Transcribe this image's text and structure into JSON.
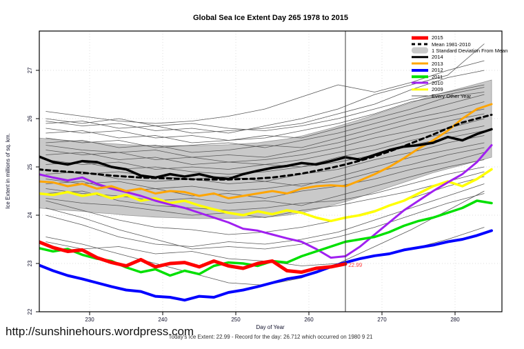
{
  "footer": {
    "summary": "Today's Ice Extent: 22.99  - Record for the day: 26.712 which occurred on 1980 9 21",
    "url": "http://sunshinehours.wordpress.com"
  },
  "chart_data": {
    "type": "line",
    "title": "Global Sea Ice Extent Day 265 1978 to 2015",
    "xlabel": "Day of Year",
    "ylabel": "Ice Extent in millions of sq. km.",
    "xlim": [
      223,
      286
    ],
    "ylim": [
      21.9,
      27.8
    ],
    "grid": true,
    "legend_position": "top-right",
    "x_ticks": [
      230,
      240,
      250,
      260,
      270,
      280
    ],
    "y_ticks": [
      22,
      23,
      24,
      25,
      26,
      27
    ],
    "vline_day": 265,
    "annotation": {
      "text": "22.99",
      "day": 265.4,
      "value": 22.97
    },
    "style": {
      "band_fill": "#c9c9c9",
      "band_edge": "#979797",
      "grid_color": "#dcdcdc",
      "other_year_color": "#565656",
      "vline_color": "#3a3a3a",
      "annotation_color": "#ff4040"
    },
    "days": [
      223,
      225,
      227,
      229,
      231,
      233,
      235,
      237,
      239,
      241,
      243,
      245,
      247,
      249,
      251,
      253,
      255,
      257,
      259,
      261,
      263,
      265,
      267,
      269,
      271,
      273,
      275,
      277,
      279,
      281,
      283,
      285
    ],
    "days_2015": [
      223,
      225,
      227,
      229,
      231,
      233,
      235,
      237,
      239,
      241,
      243,
      245,
      247,
      249,
      251,
      253,
      255,
      257,
      259,
      261,
      263,
      265
    ],
    "other_days": [
      224,
      229,
      234,
      239,
      244,
      249,
      254,
      259,
      264,
      269,
      274,
      279,
      284
    ],
    "band": {
      "label": "1 Standard Deviation From Mean",
      "upper": [
        25.6,
        25.57,
        25.55,
        25.53,
        25.5,
        25.48,
        25.46,
        25.45,
        25.44,
        25.44,
        25.44,
        25.44,
        25.45,
        25.46,
        25.48,
        25.5,
        25.54,
        25.58,
        25.64,
        25.72,
        25.8,
        25.89,
        25.98,
        26.08,
        26.18,
        26.28,
        26.38,
        26.48,
        26.56,
        26.64,
        26.72,
        26.8
      ],
      "lower": [
        24.15,
        24.12,
        24.1,
        24.08,
        24.05,
        24.03,
        24.0,
        23.98,
        23.96,
        23.95,
        23.94,
        23.93,
        23.93,
        23.93,
        23.94,
        23.95,
        23.97,
        24.0,
        24.05,
        24.12,
        24.2,
        24.28,
        24.38,
        24.48,
        24.58,
        24.68,
        24.78,
        24.88,
        24.96,
        25.04,
        25.12,
        25.2
      ]
    },
    "series": [
      {
        "name": "2009",
        "color": "#ffff00",
        "width": 3.5,
        "days_ref": "days",
        "values": [
          24.45,
          24.42,
          24.48,
          24.4,
          24.45,
          24.35,
          24.42,
          24.3,
          24.35,
          24.25,
          24.3,
          24.2,
          24.12,
          24.05,
          24.0,
          24.08,
          24.02,
          24.1,
          24.05,
          23.95,
          23.88,
          23.95,
          24.0,
          24.08,
          24.2,
          24.3,
          24.45,
          24.6,
          24.7,
          24.6,
          24.75,
          24.95
        ]
      },
      {
        "name": "2010",
        "color": "#a020f0",
        "width": 3,
        "days_ref": "days",
        "values": [
          24.85,
          24.78,
          24.72,
          24.78,
          24.65,
          24.55,
          24.48,
          24.4,
          24.3,
          24.22,
          24.15,
          24.05,
          23.95,
          23.85,
          23.72,
          23.68,
          23.6,
          23.52,
          23.45,
          23.3,
          23.12,
          23.15,
          23.35,
          23.6,
          23.85,
          24.1,
          24.3,
          24.5,
          24.68,
          24.85,
          25.1,
          25.45
        ]
      },
      {
        "name": "2011",
        "color": "#00e000",
        "width": 3.5,
        "days_ref": "days",
        "values": [
          23.32,
          23.25,
          23.3,
          23.18,
          23.1,
          23.05,
          22.92,
          22.82,
          22.88,
          22.75,
          22.85,
          22.78,
          22.95,
          23.02,
          23.0,
          22.95,
          23.05,
          23.02,
          23.15,
          23.25,
          23.35,
          23.45,
          23.5,
          23.55,
          23.65,
          23.78,
          23.88,
          23.95,
          24.05,
          24.15,
          24.3,
          24.25
        ]
      },
      {
        "name": "2012",
        "color": "#0000ff",
        "width": 4,
        "days_ref": "days",
        "values": [
          22.97,
          22.85,
          22.75,
          22.68,
          22.6,
          22.52,
          22.45,
          22.42,
          22.32,
          22.3,
          22.24,
          22.32,
          22.3,
          22.4,
          22.45,
          22.52,
          22.6,
          22.68,
          22.73,
          22.82,
          22.93,
          23.02,
          23.1,
          23.16,
          23.2,
          23.28,
          23.33,
          23.38,
          23.45,
          23.5,
          23.58,
          23.68
        ]
      },
      {
        "name": "2013",
        "color": "#ffa500",
        "width": 3,
        "days_ref": "days",
        "values": [
          24.7,
          24.68,
          24.6,
          24.65,
          24.55,
          24.6,
          24.5,
          24.55,
          24.45,
          24.5,
          24.48,
          24.4,
          24.45,
          24.35,
          24.4,
          24.45,
          24.5,
          24.45,
          24.55,
          24.6,
          24.62,
          24.6,
          24.72,
          24.85,
          25.0,
          25.18,
          25.38,
          25.55,
          25.75,
          26.0,
          26.2,
          26.3
        ]
      },
      {
        "name": "2014",
        "color": "#000000",
        "width": 3.5,
        "days_ref": "days",
        "values": [
          25.22,
          25.1,
          25.05,
          25.12,
          25.1,
          25.0,
          24.95,
          24.82,
          24.78,
          24.85,
          24.8,
          24.85,
          24.78,
          24.75,
          24.85,
          24.92,
          24.98,
          25.02,
          25.08,
          25.05,
          25.12,
          25.2,
          25.15,
          25.25,
          25.35,
          25.42,
          25.45,
          25.5,
          25.62,
          25.55,
          25.68,
          25.78
        ]
      },
      {
        "name": "mean-1981-2010",
        "color": "#000000",
        "width": 3,
        "dash": "6 5",
        "days_ref": "days",
        "values": [
          24.95,
          24.92,
          24.9,
          24.88,
          24.85,
          24.82,
          24.8,
          24.78,
          24.77,
          24.76,
          24.75,
          24.74,
          24.74,
          24.74,
          24.75,
          24.76,
          24.78,
          24.82,
          24.86,
          24.92,
          24.98,
          25.05,
          25.13,
          25.22,
          25.32,
          25.43,
          25.55,
          25.67,
          25.8,
          25.92,
          26.0,
          26.08
        ]
      },
      {
        "name": "2015",
        "color": "#ff0000",
        "width": 5,
        "days_ref": "days_2015",
        "values": [
          23.45,
          23.33,
          23.25,
          23.28,
          23.12,
          23.02,
          22.95,
          23.08,
          22.93,
          23.0,
          23.02,
          22.93,
          23.05,
          22.95,
          22.9,
          23.0,
          23.05,
          22.85,
          22.82,
          22.9,
          22.93,
          22.99
        ]
      }
    ],
    "other_years": [
      [
        26.15,
        26.05,
        25.95,
        25.9,
        25.95,
        26.05,
        26.2,
        26.45,
        26.7,
        26.55,
        26.75,
        27.0,
        27.2
      ],
      [
        25.95,
        25.85,
        25.9,
        25.75,
        25.8,
        25.7,
        25.85,
        26.0,
        26.2,
        26.5,
        26.7,
        26.9,
        27.55
      ],
      [
        25.9,
        25.95,
        25.8,
        25.85,
        25.7,
        25.75,
        25.8,
        25.9,
        26.1,
        26.3,
        26.6,
        26.85,
        27.0
      ],
      [
        26.0,
        25.9,
        26.0,
        25.85,
        25.9,
        25.8,
        25.75,
        25.85,
        26.0,
        26.2,
        26.4,
        26.55,
        26.7
      ],
      [
        25.8,
        25.7,
        25.75,
        25.6,
        25.65,
        25.55,
        25.6,
        25.75,
        25.9,
        26.1,
        26.35,
        26.5,
        26.65
      ],
      [
        25.7,
        25.75,
        25.6,
        25.65,
        25.5,
        25.55,
        25.65,
        25.6,
        25.8,
        26.0,
        26.2,
        26.45,
        26.55
      ],
      [
        25.6,
        25.5,
        25.55,
        25.4,
        25.45,
        25.5,
        25.4,
        25.55,
        25.7,
        25.9,
        26.1,
        26.3,
        26.5
      ],
      [
        25.5,
        25.55,
        25.4,
        25.45,
        25.3,
        25.35,
        25.45,
        25.4,
        25.6,
        25.8,
        26.0,
        26.15,
        26.35
      ],
      [
        25.45,
        25.35,
        25.3,
        25.35,
        25.2,
        25.25,
        25.2,
        25.35,
        25.5,
        25.7,
        25.9,
        26.05,
        26.2
      ],
      [
        25.35,
        25.25,
        25.3,
        25.15,
        25.2,
        25.1,
        25.15,
        25.25,
        25.4,
        25.6,
        25.75,
        25.95,
        26.1
      ],
      [
        25.25,
        25.3,
        25.15,
        25.2,
        25.05,
        25.1,
        25.05,
        25.15,
        25.3,
        25.45,
        25.65,
        25.8,
        26.0
      ],
      [
        25.15,
        25.05,
        25.1,
        24.95,
        25.0,
        24.95,
        25.05,
        25.0,
        25.2,
        25.35,
        25.55,
        25.7,
        25.85
      ],
      [
        25.05,
        25.1,
        24.95,
        25.0,
        24.9,
        24.85,
        24.9,
        25.0,
        25.1,
        25.25,
        25.45,
        25.6,
        25.75
      ],
      [
        24.95,
        24.85,
        24.9,
        24.8,
        24.75,
        24.8,
        24.7,
        24.85,
        24.95,
        25.15,
        25.3,
        25.5,
        25.65
      ],
      [
        24.85,
        24.9,
        24.75,
        24.7,
        24.75,
        24.65,
        24.7,
        24.6,
        24.8,
        25.0,
        25.2,
        25.35,
        25.5
      ],
      [
        24.75,
        24.65,
        24.7,
        24.55,
        24.6,
        24.5,
        24.55,
        24.65,
        24.7,
        24.9,
        25.05,
        25.25,
        25.4
      ],
      [
        24.65,
        24.7,
        24.5,
        24.55,
        24.4,
        24.45,
        24.35,
        24.5,
        24.6,
        24.75,
        24.95,
        25.1,
        25.3
      ],
      [
        24.55,
        24.45,
        24.4,
        24.3,
        24.35,
        24.25,
        24.3,
        24.2,
        24.4,
        24.6,
        24.8,
        25.0,
        25.15
      ],
      [
        24.45,
        24.5,
        24.3,
        24.2,
        24.15,
        24.1,
        24.15,
        24.25,
        24.3,
        24.45,
        24.65,
        24.85,
        25.0
      ],
      [
        24.35,
        24.25,
        24.2,
        24.1,
        24.0,
        24.05,
        23.95,
        24.1,
        24.2,
        24.35,
        24.5,
        24.7,
        24.9
      ],
      [
        24.3,
        24.1,
        23.9,
        23.75,
        23.7,
        23.6,
        23.65,
        23.75,
        23.9,
        24.1,
        24.35,
        24.6,
        24.8
      ],
      [
        24.0,
        23.8,
        23.55,
        23.4,
        23.35,
        23.45,
        23.4,
        23.5,
        23.65,
        23.9,
        24.15,
        24.4,
        24.65
      ],
      [
        23.55,
        23.4,
        23.2,
        23.0,
        22.8,
        22.6,
        22.55,
        22.7,
        23.0,
        23.35,
        23.7,
        24.1,
        24.5
      ],
      [
        23.45,
        23.3,
        23.35,
        23.2,
        23.25,
        23.1,
        23.05,
        22.95,
        23.0,
        23.15,
        23.3,
        23.5,
        23.75
      ],
      [
        24.15,
        23.95,
        23.7,
        23.5,
        23.3,
        23.35,
        23.3,
        23.4,
        23.55,
        23.75,
        24.0,
        24.25,
        24.45
      ]
    ],
    "legend": [
      {
        "label": "2015",
        "color": "#ff0000",
        "lw": 5
      },
      {
        "label": "Mean 1981-2010",
        "color": "#000000",
        "lw": 3,
        "dash": true
      },
      {
        "label": "1 Standard Deviation From Mean",
        "color": "#c9c9c9",
        "lw": 9,
        "band": true
      },
      {
        "label": "2014",
        "color": "#000000",
        "lw": 3.5
      },
      {
        "label": "2013",
        "color": "#ffa500",
        "lw": 3
      },
      {
        "label": "2012",
        "color": "#0000ff",
        "lw": 4
      },
      {
        "label": "2011",
        "color": "#00e000",
        "lw": 3.5
      },
      {
        "label": "2010",
        "color": "#a020f0",
        "lw": 3
      },
      {
        "label": "2009",
        "color": "#ffff00",
        "lw": 3.5
      },
      {
        "label": "Every Other Year",
        "color": "#565656",
        "lw": 1
      }
    ]
  }
}
